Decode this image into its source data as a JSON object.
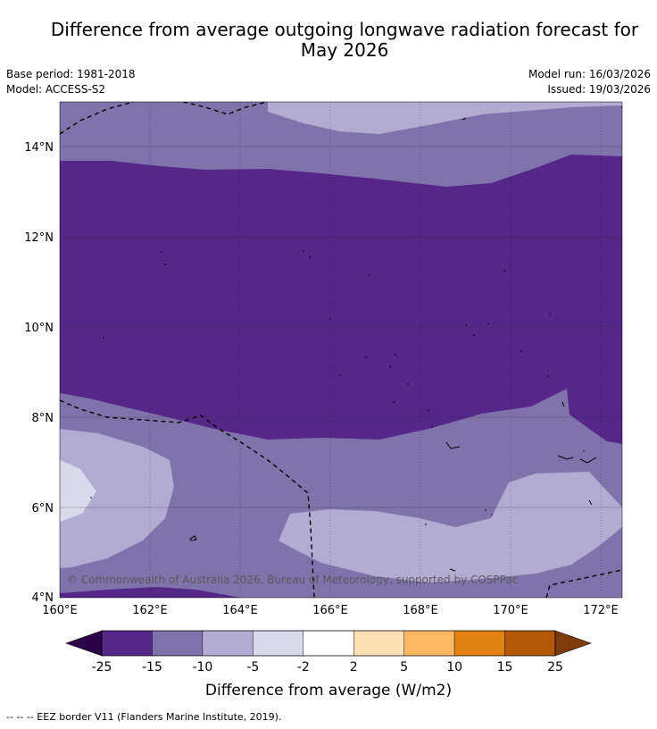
{
  "title": {
    "line1": "Difference from average outgoing longwave radiation forecast for",
    "line2": "May 2026"
  },
  "metadata": {
    "base_period": "Base period: 1981-2018",
    "model": "Model: ACCESS-S2",
    "model_run": "Model run: 16/03/2026",
    "issued": "Issued: 19/03/2026"
  },
  "map": {
    "lat_labels": [
      "14°N",
      "12°N",
      "10°N",
      "8°N",
      "6°N",
      "4°N"
    ],
    "lon_labels": [
      "160°E",
      "162°E",
      "164°E",
      "166°E",
      "168°E",
      "170°E",
      "172°E"
    ],
    "copyright": "© Commonwealth of Australia 2026, Bureau of Meteorology, supported by COSPPac",
    "gridlines": true,
    "colors": {
      "below_-25": "#2d004b",
      "-25_-15": "#542788",
      "-15_-10": "#8073ac",
      "-10_-5": "#b2abd2",
      "-5_-2": "#d8daeb",
      "-2_2": "#ffffff",
      "2_5": "#fee0b6",
      "5_10": "#fdb863",
      "10_15": "#e08214",
      "15_25": "#b35806",
      "above_25": "#7f3b08"
    }
  },
  "colorbar": {
    "label": "Difference from average (W/m2)",
    "ticks": [
      "-25",
      "-15",
      "-10",
      "-5",
      "-2",
      "2",
      "5",
      "10",
      "15",
      "25"
    ],
    "colors": [
      "#542788",
      "#8073ac",
      "#b2abd2",
      "#d8daeb",
      "#ffffff",
      "#fee0b6",
      "#fdb863",
      "#e08214",
      "#b35806"
    ],
    "low_extend": "#2d004b",
    "high_extend": "#7f3b08"
  },
  "legend": {
    "eez": "-- -- -- EEZ border V11 (Flanders Marine Institute, 2019)."
  }
}
